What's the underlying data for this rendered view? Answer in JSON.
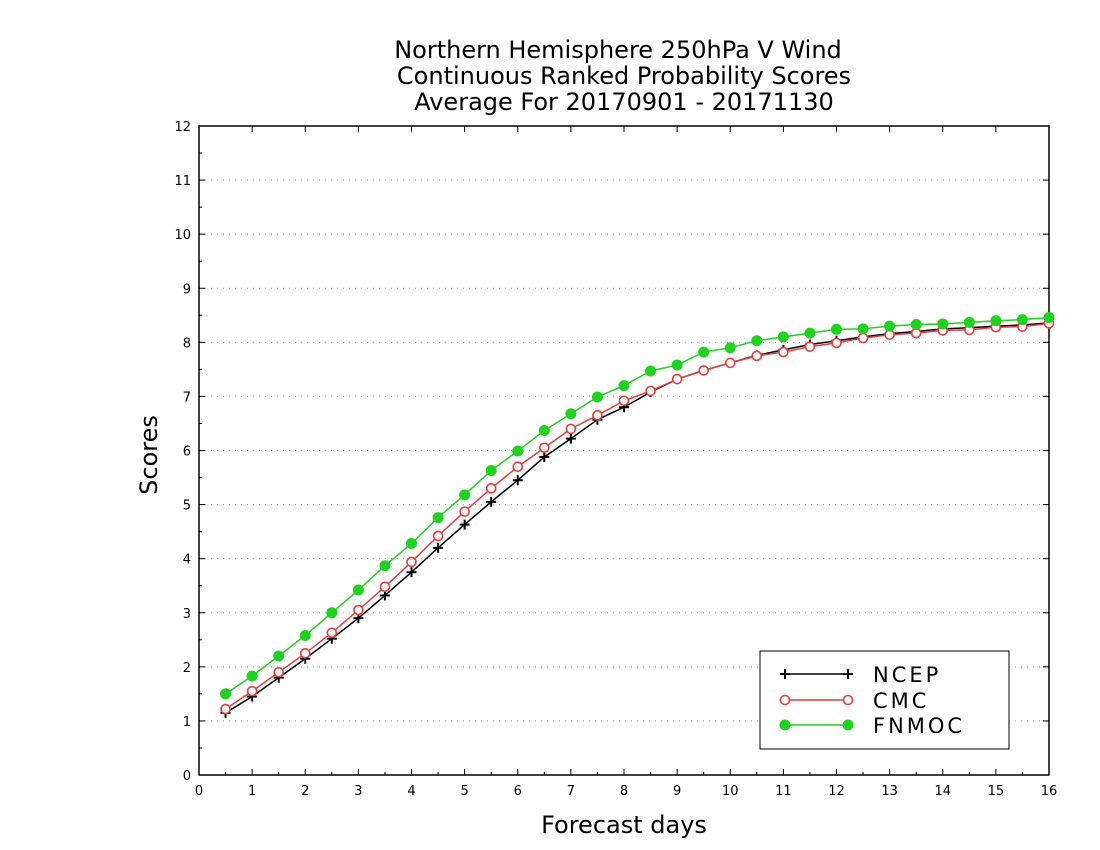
{
  "chart_data": {
    "type": "line",
    "title": [
      "Northern Hemisphere 250hPa V Wind",
      "Continuous Ranked Probability Scores",
      "Average For 20170901 - 20171130"
    ],
    "xlabel": "Forecast days",
    "ylabel": "Scores",
    "xlim": [
      0,
      16
    ],
    "ylim": [
      0,
      12
    ],
    "xticks": [
      0,
      1,
      2,
      3,
      4,
      5,
      6,
      7,
      8,
      9,
      10,
      11,
      12,
      13,
      14,
      15,
      16
    ],
    "yticks": [
      0,
      1,
      2,
      3,
      4,
      5,
      6,
      7,
      8,
      9,
      10,
      11,
      12
    ],
    "grid": "horizontal dotted",
    "legend_position": "bottom-right",
    "x": [
      0.5,
      1,
      1.5,
      2,
      2.5,
      3,
      3.5,
      4,
      4.5,
      5,
      5.5,
      6,
      6.5,
      7,
      7.5,
      8,
      8.5,
      9,
      9.5,
      10,
      10.5,
      11,
      11.5,
      12,
      12.5,
      13,
      13.5,
      14,
      14.5,
      15,
      15.5,
      16
    ],
    "series": [
      {
        "name": "NCEP",
        "color": "#000000",
        "marker": "plus",
        "values": [
          1.15,
          1.45,
          1.8,
          2.15,
          2.52,
          2.9,
          3.32,
          3.75,
          4.2,
          4.63,
          5.05,
          5.45,
          5.88,
          6.22,
          6.57,
          6.8,
          7.08,
          7.32,
          7.48,
          7.62,
          7.76,
          7.86,
          7.96,
          8.03,
          8.1,
          8.16,
          8.2,
          8.25,
          8.27,
          8.3,
          8.32,
          8.36
        ]
      },
      {
        "name": "CMC",
        "color": "#e83c3c",
        "marker": "open-circle",
        "values": [
          1.22,
          1.55,
          1.9,
          2.25,
          2.63,
          3.05,
          3.48,
          3.94,
          4.42,
          4.87,
          5.3,
          5.7,
          6.05,
          6.4,
          6.65,
          6.92,
          7.1,
          7.32,
          7.48,
          7.62,
          7.75,
          7.82,
          7.92,
          7.99,
          8.08,
          8.14,
          8.17,
          8.22,
          8.23,
          8.28,
          8.29,
          8.35
        ]
      },
      {
        "name": "FNMOC",
        "color": "#1ed21e",
        "marker": "filled-circle",
        "values": [
          1.5,
          1.83,
          2.2,
          2.58,
          3.0,
          3.42,
          3.87,
          4.28,
          4.76,
          5.18,
          5.63,
          5.99,
          6.37,
          6.68,
          6.99,
          7.2,
          7.47,
          7.58,
          7.82,
          7.9,
          8.03,
          8.1,
          8.17,
          8.24,
          8.25,
          8.3,
          8.33,
          8.34,
          8.37,
          8.4,
          8.42,
          8.46
        ]
      }
    ]
  }
}
